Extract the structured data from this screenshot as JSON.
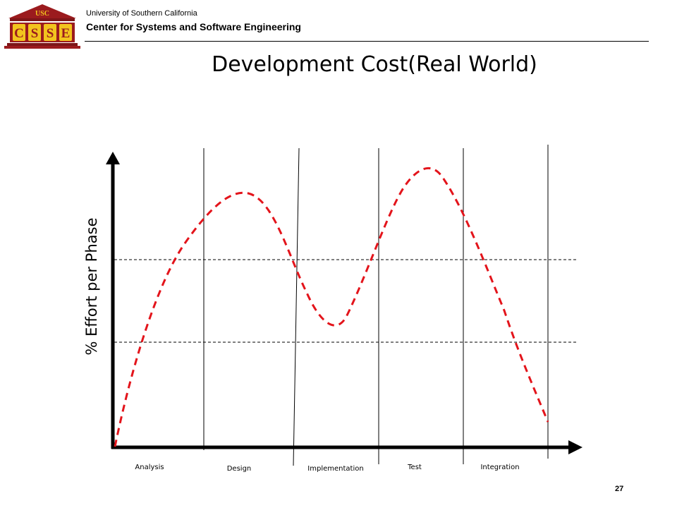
{
  "header": {
    "logo": {
      "top_text": "USC",
      "letters": "CSSE"
    },
    "institution": "University of Southern California",
    "center": "Center for Systems and Software Engineering"
  },
  "slide": {
    "title": "Development Cost(Real World)",
    "y_axis_label": "% Effort per Phase",
    "page_number": "27"
  },
  "diagram": {
    "phases": [
      "Analysis",
      "Design",
      "Implementation",
      "Test",
      "Integration"
    ],
    "curve_color": "#e3141b",
    "axis_color": "#000000",
    "logo_color": "#9b1b1e",
    "logo_accent": "#f2c41e"
  }
}
